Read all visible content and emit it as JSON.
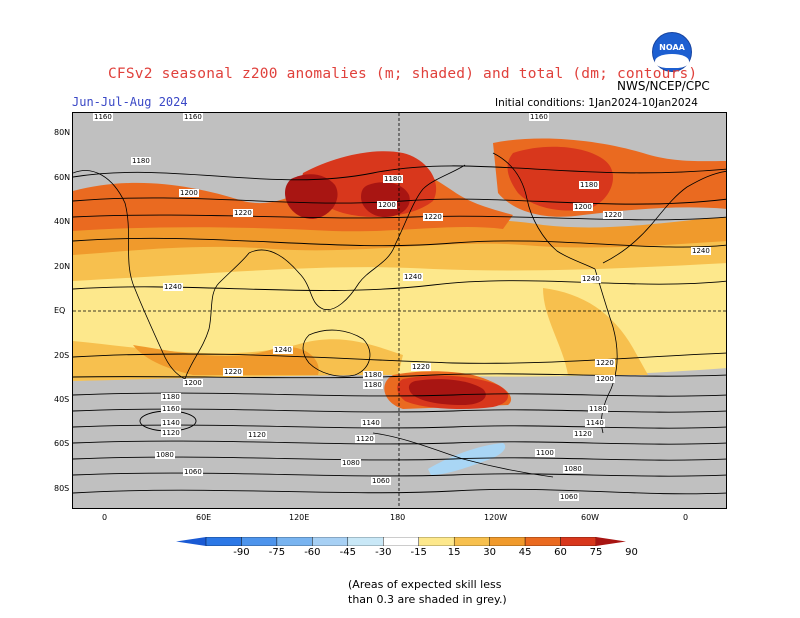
{
  "header": {
    "title": "CFSv2 seasonal z200 anomalies (m; shaded) and total (dm; contours)",
    "season": "Jun-Jul-Aug 2024",
    "agency": "NWS/NCEP/CPC",
    "initial_conditions": "Initial conditions: 1Jan2024-10Jan2024",
    "logo_text": "NOAA"
  },
  "map": {
    "latitude_labels": [
      "80N",
      "60N",
      "40N",
      "20N",
      "EQ",
      "20S",
      "40S",
      "60S",
      "80S"
    ],
    "longitude_labels": [
      "0",
      "60E",
      "120E",
      "180",
      "120W",
      "60W",
      "0"
    ],
    "contour_labels": [
      "1160",
      "1180",
      "1200",
      "1220",
      "1240",
      "1140",
      "1120",
      "1100",
      "1080",
      "1060"
    ],
    "colors": {
      "grey_mask": "#c0c0c0",
      "light_yellow": "#fde88c",
      "yellow_orange": "#f7c04e",
      "orange": "#f09a2c",
      "orange_red": "#ea6a20",
      "red": "#d8371c",
      "dark_red": "#a81512",
      "light_blue": "#a9d6f5"
    }
  },
  "colorbar": {
    "ticks": [
      "-90",
      "-75",
      "-60",
      "-45",
      "-30",
      "-15",
      "15",
      "30",
      "45",
      "60",
      "75",
      "90"
    ],
    "colors": [
      "#1a5ad4",
      "#2c78e6",
      "#4d94ec",
      "#79b4f0",
      "#a7d0f4",
      "#c9e8f7",
      "#ffffff",
      "#fde88c",
      "#f7c04e",
      "#f09a2c",
      "#ea6a20",
      "#d8371c",
      "#a81512"
    ]
  },
  "footnote": {
    "line1": "(Areas of expected skill less",
    "line2": "than 0.3 are shaded in grey.)"
  }
}
